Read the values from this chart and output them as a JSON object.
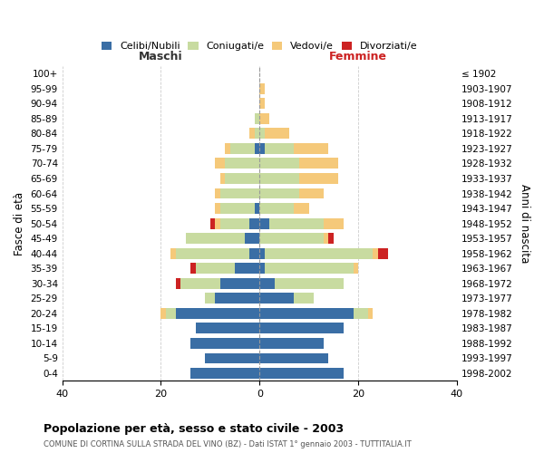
{
  "age_groups": [
    "0-4",
    "5-9",
    "10-14",
    "15-19",
    "20-24",
    "25-29",
    "30-34",
    "35-39",
    "40-44",
    "45-49",
    "50-54",
    "55-59",
    "60-64",
    "65-69",
    "70-74",
    "75-79",
    "80-84",
    "85-89",
    "90-94",
    "95-99",
    "100+"
  ],
  "birth_years": [
    "1998-2002",
    "1993-1997",
    "1988-1992",
    "1983-1987",
    "1978-1982",
    "1973-1977",
    "1968-1972",
    "1963-1967",
    "1958-1962",
    "1953-1957",
    "1948-1952",
    "1943-1947",
    "1938-1942",
    "1933-1937",
    "1928-1932",
    "1923-1927",
    "1918-1922",
    "1913-1917",
    "1908-1912",
    "1903-1907",
    "≤ 1902"
  ],
  "maschi_celibi": [
    14,
    11,
    14,
    13,
    17,
    9,
    8,
    5,
    2,
    3,
    2,
    1,
    0,
    0,
    0,
    1,
    0,
    0,
    0,
    0,
    0
  ],
  "maschi_coniugati": [
    0,
    0,
    0,
    0,
    2,
    2,
    8,
    8,
    15,
    12,
    6,
    7,
    8,
    7,
    7,
    5,
    1,
    1,
    0,
    0,
    0
  ],
  "maschi_vedovi": [
    0,
    0,
    0,
    0,
    1,
    0,
    0,
    0,
    1,
    0,
    1,
    1,
    1,
    1,
    2,
    1,
    1,
    0,
    0,
    0,
    0
  ],
  "maschi_divorziati": [
    0,
    0,
    0,
    0,
    0,
    0,
    1,
    1,
    0,
    0,
    1,
    0,
    0,
    0,
    0,
    0,
    0,
    0,
    0,
    0,
    0
  ],
  "femmine_nubili": [
    17,
    14,
    13,
    17,
    19,
    7,
    3,
    1,
    1,
    0,
    2,
    0,
    0,
    0,
    0,
    1,
    0,
    0,
    0,
    0,
    0
  ],
  "femmine_coniugate": [
    0,
    0,
    0,
    0,
    3,
    4,
    14,
    18,
    22,
    13,
    11,
    7,
    8,
    8,
    8,
    6,
    1,
    0,
    0,
    0,
    0
  ],
  "femmine_vedove": [
    0,
    0,
    0,
    0,
    1,
    0,
    0,
    1,
    1,
    1,
    4,
    3,
    5,
    8,
    8,
    7,
    5,
    2,
    1,
    1,
    0
  ],
  "femmine_divorziate": [
    0,
    0,
    0,
    0,
    0,
    0,
    0,
    0,
    2,
    1,
    0,
    0,
    0,
    0,
    0,
    0,
    0,
    0,
    0,
    0,
    0
  ],
  "color_celibi": "#3a6ea5",
  "color_coniugati": "#c8dba0",
  "color_vedovi": "#f5c97a",
  "color_divorziati": "#cc2222",
  "title": "Popolazione per età, sesso e stato civile - 2003",
  "subtitle": "COMUNE DI CORTINA SULLA STRADA DEL VINO (BZ) - Dati ISTAT 1° gennaio 2003 - TUTTITALIA.IT",
  "header_maschi": "Maschi",
  "header_femmine": "Femmine",
  "ylabel_left": "Fasce di età",
  "ylabel_right": "Anni di nascita",
  "legend_labels": [
    "Celibi/Nubili",
    "Coniugati/e",
    "Vedovi/e",
    "Divorziati/e"
  ],
  "xlim": 40
}
